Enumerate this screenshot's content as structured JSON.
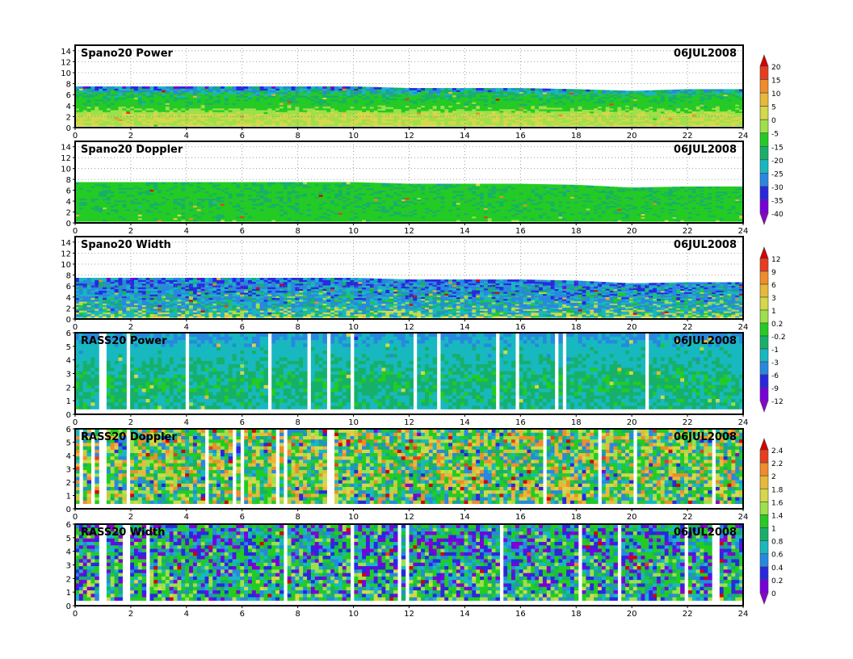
{
  "chart_data": [
    {
      "type": "heatmap",
      "title": "Spano20 Power",
      "date_label": "06JUL2008",
      "xlim": [
        0,
        24
      ],
      "ylim": [
        0,
        15
      ],
      "x_ticks": [
        0,
        2,
        4,
        6,
        8,
        10,
        12,
        14,
        16,
        18,
        20,
        22,
        24
      ],
      "y_ticks": [
        0,
        2,
        4,
        6,
        8,
        10,
        12,
        14
      ],
      "grid": true,
      "colorbar": "A",
      "data_top": [
        7.5,
        7.5,
        7.5,
        7.5,
        7.5,
        7.5,
        7.2,
        7.2,
        7.2,
        7.0,
        6.7,
        7.0,
        7.0
      ],
      "data_bottom": 0.3,
      "levels_by_height": [
        {
          "y": 0.5,
          "v": 0
        },
        {
          "y": 2.5,
          "v": 0
        },
        {
          "y": 4,
          "v": -10
        },
        {
          "y": 6,
          "v": -15
        },
        {
          "y": 7.5,
          "v": -30
        }
      ]
    },
    {
      "type": "heatmap",
      "title": "Spano20 Doppler",
      "date_label": "06JUL2008",
      "xlim": [
        0,
        24
      ],
      "ylim": [
        0,
        15
      ],
      "x_ticks": [
        0,
        2,
        4,
        6,
        8,
        10,
        12,
        14,
        16,
        18,
        20,
        22,
        24
      ],
      "y_ticks": [
        0,
        2,
        4,
        6,
        8,
        10,
        12,
        14
      ],
      "grid": true,
      "colorbar": "A",
      "data_top": [
        7.5,
        7.5,
        7.5,
        7.5,
        7.5,
        7.5,
        7.2,
        7.2,
        7.2,
        7.0,
        6.5,
        6.7,
        6.7
      ],
      "data_bottom": 0.3,
      "levels_by_height": [
        {
          "y": 0.5,
          "v": -10
        },
        {
          "y": 3,
          "v": -12
        },
        {
          "y": 6,
          "v": -12
        },
        {
          "y": 7.5,
          "v": -12
        }
      ]
    },
    {
      "type": "heatmap",
      "title": "Spano20 Width",
      "date_label": "06JUL2008",
      "xlim": [
        0,
        24
      ],
      "ylim": [
        0,
        15
      ],
      "x_ticks": [
        0,
        2,
        4,
        6,
        8,
        10,
        12,
        14,
        16,
        18,
        20,
        22,
        24
      ],
      "y_ticks": [
        0,
        2,
        4,
        6,
        8,
        10,
        12,
        14
      ],
      "grid": true,
      "colorbar": "B",
      "data_top": [
        7.5,
        7.5,
        7.5,
        7.5,
        7.5,
        7.5,
        7.2,
        7.2,
        7.2,
        7.0,
        6.5,
        6.7,
        6.7
      ],
      "data_bottom": 0.3,
      "levels_by_height": [
        {
          "y": 0.5,
          "v": 0.2
        },
        {
          "y": 2,
          "v": -2
        },
        {
          "y": 5,
          "v": -3.5
        },
        {
          "y": 7.5,
          "v": -5
        }
      ]
    },
    {
      "type": "heatmap",
      "title": "RASS20 Power",
      "date_label": "06JUL2008",
      "xlim": [
        0,
        24
      ],
      "ylim": [
        0,
        6
      ],
      "x_ticks": [
        0,
        2,
        4,
        6,
        8,
        10,
        12,
        14,
        16,
        18,
        20,
        22,
        24
      ],
      "y_ticks": [
        0,
        1,
        2,
        3,
        4,
        5,
        6
      ],
      "grid": false,
      "colorbar": "B",
      "data_top": [
        6,
        6,
        6,
        6,
        6,
        6,
        6,
        6,
        6,
        6,
        6,
        6,
        6
      ],
      "data_bottom": 0.4,
      "levels_by_height": [
        {
          "y": 0.5,
          "v": -1
        },
        {
          "y": 2.5,
          "v": -0.5
        },
        {
          "y": 5,
          "v": -2
        },
        {
          "y": 6,
          "v": -4
        }
      ]
    },
    {
      "type": "heatmap",
      "title": "RASS20 Doppler",
      "date_label": "06JUL2008",
      "xlim": [
        0,
        24
      ],
      "ylim": [
        0,
        6
      ],
      "x_ticks": [
        0,
        2,
        4,
        6,
        8,
        10,
        12,
        14,
        16,
        18,
        20,
        22,
        24
      ],
      "y_ticks": [
        0,
        1,
        2,
        3,
        4,
        5,
        6
      ],
      "grid": false,
      "colorbar": "C",
      "data_top": [
        6,
        6,
        6,
        6,
        6,
        6,
        6,
        6,
        6,
        6,
        6,
        6,
        6
      ],
      "data_bottom": 0.4,
      "levels_by_height": [
        {
          "y": 0.5,
          "v": 1.2
        },
        {
          "y": 3,
          "v": 1.3
        },
        {
          "y": 6,
          "v": 1.3
        }
      ]
    },
    {
      "type": "heatmap",
      "title": "RASS20 Width",
      "date_label": "06JUL2008",
      "xlim": [
        0,
        24
      ],
      "ylim": [
        0,
        6
      ],
      "x_ticks": [
        0,
        2,
        4,
        6,
        8,
        10,
        12,
        14,
        16,
        18,
        20,
        22,
        24
      ],
      "y_ticks": [
        0,
        1,
        2,
        3,
        4,
        5,
        6
      ],
      "grid": false,
      "colorbar": "C",
      "data_top": [
        6,
        6,
        6,
        6,
        6,
        6,
        6,
        6,
        6,
        6,
        6,
        6,
        6
      ],
      "data_bottom": 0.4,
      "levels_by_height": [
        {
          "y": 0.5,
          "v": 0.9
        },
        {
          "y": 3,
          "v": 0.8
        },
        {
          "y": 6,
          "v": 0.7
        }
      ]
    }
  ],
  "colorbars": {
    "A": {
      "labels": [
        "20",
        "15",
        "10",
        "5",
        "0",
        "-5",
        "-15",
        "-20",
        "-25",
        "-30",
        "-35",
        "-40"
      ],
      "colors": [
        "#d80000",
        "#e83c1e",
        "#f08c2a",
        "#e8b83a",
        "#d4d84a",
        "#9ee04a",
        "#22cc22",
        "#16b06a",
        "#18b8c0",
        "#2888e0",
        "#2828e0",
        "#7800d8",
        "#8c00d0"
      ]
    },
    "B": {
      "labels": [
        "12",
        "9",
        "6",
        "3",
        "1",
        "0.2",
        "-0.2",
        "-1",
        "-3",
        "-6",
        "-9",
        "-12"
      ],
      "colors": [
        "#d80000",
        "#e83c1e",
        "#f08c2a",
        "#e8b83a",
        "#d4d84a",
        "#9ee04a",
        "#22cc22",
        "#16b06a",
        "#18b8c0",
        "#2888e0",
        "#2828e0",
        "#7800d8",
        "#8c00d0"
      ]
    },
    "C": {
      "labels": [
        "2.4",
        "2.2",
        "2",
        "1.8",
        "1.6",
        "1.4",
        "1",
        "0.8",
        "0.6",
        "0.4",
        "0.2",
        "0"
      ],
      "colors": [
        "#d80000",
        "#e83c1e",
        "#f08c2a",
        "#e8b83a",
        "#d4d84a",
        "#9ee04a",
        "#22cc22",
        "#16b06a",
        "#18b8c0",
        "#2888e0",
        "#2828e0",
        "#7800d8",
        "#8c00d0"
      ]
    }
  }
}
